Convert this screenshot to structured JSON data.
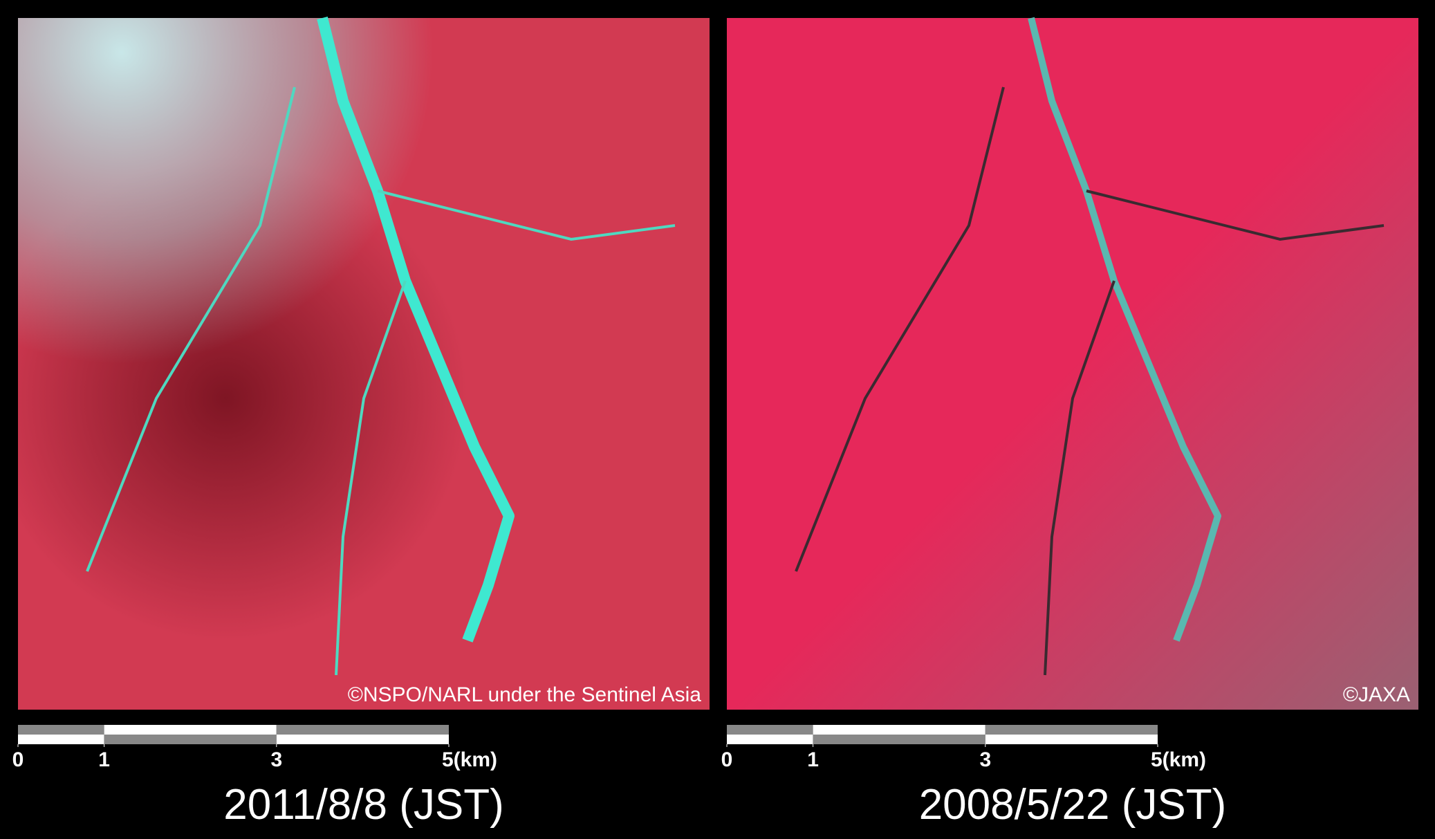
{
  "panels": [
    {
      "credit": "©NSPO/NARL under the Sentinel Asia",
      "date": "2011/8/8 (JST)",
      "scale_ticks": [
        0,
        1,
        3,
        {
          "value": 5,
          "label": "5(km)"
        }
      ],
      "tone": "post"
    },
    {
      "credit": "©JAXA",
      "date": "2008/5/22 (JST)",
      "scale_ticks": [
        0,
        1,
        3,
        {
          "value": 5,
          "label": "5(km)"
        }
      ],
      "tone": "pre"
    }
  ]
}
